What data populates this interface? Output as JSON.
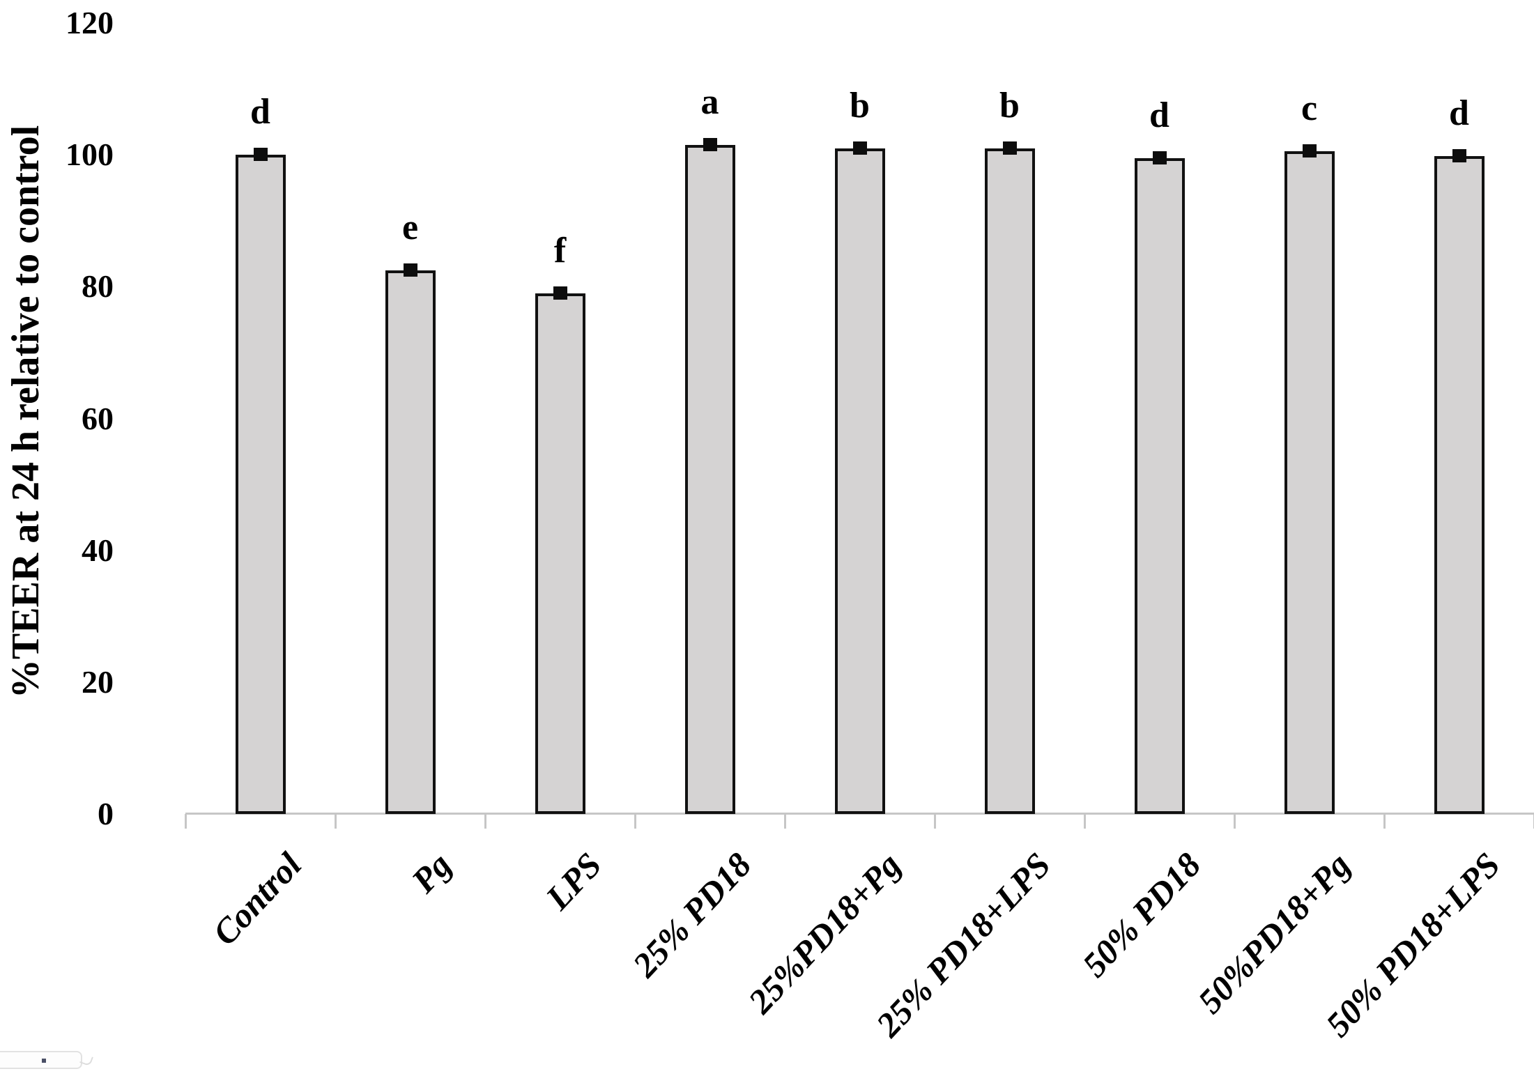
{
  "page": {
    "background": "#ffffff"
  },
  "chart_data": {
    "type": "bar",
    "title": "",
    "ylabel": "%TEER at 24 h relative to control",
    "xlabel": "",
    "ylim": [
      0,
      120
    ],
    "yticks": [
      0,
      20,
      40,
      60,
      80,
      100,
      120
    ],
    "grid": false,
    "legend": false,
    "categories": [
      "Control",
      "Pg",
      "LPS",
      "25% PD18",
      "25%PD18+Pg",
      "25% PD18+LPS",
      "50% PD18",
      "50%PD18+Pg",
      "50% PD18+LPS"
    ],
    "values": [
      100,
      82.5,
      79,
      101.5,
      101,
      101,
      99.5,
      100.5,
      99.8
    ],
    "significance_letters": [
      "d",
      "e",
      "f",
      "a",
      "b",
      "b",
      "d",
      "c",
      "d"
    ],
    "error_bar_halfwidth_pct": 1,
    "colors": {
      "bar_fill": "#d5d3d3",
      "bar_border": "#111111",
      "error_marker": "#0d0d0d",
      "axis_line": "#c6c6c6",
      "text": "#000000"
    }
  }
}
